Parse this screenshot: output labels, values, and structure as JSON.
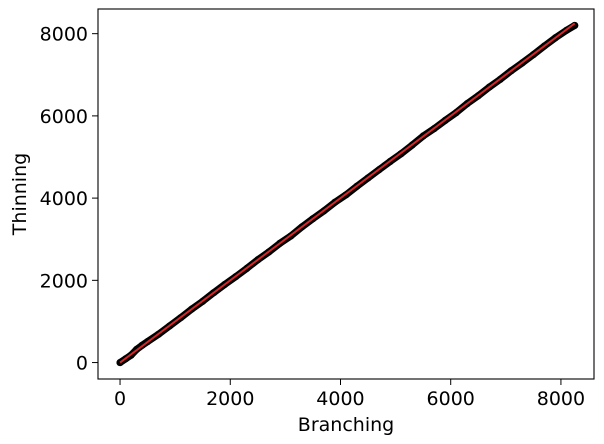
{
  "chart_data": {
    "type": "scatter",
    "title": "",
    "xlabel": "Branching",
    "ylabel": "Thinning",
    "xlim": [
      -400,
      8600
    ],
    "ylim": [
      -400,
      8600
    ],
    "x_ticks": [
      0,
      2000,
      4000,
      6000,
      8000
    ],
    "y_ticks": [
      0,
      2000,
      4000,
      6000,
      8000
    ],
    "x_tick_labels": [
      "0",
      "2000",
      "4000",
      "6000",
      "8000"
    ],
    "y_tick_labels": [
      "0",
      "2000",
      "4000",
      "6000",
      "8000"
    ],
    "grid": false,
    "legend": "none",
    "series": [
      {
        "color": "#000000",
        "marker": "circle",
        "x": [
          0,
          100,
          200,
          300,
          400,
          500,
          700,
          900,
          1100,
          1300,
          1500,
          1700,
          1900,
          2100,
          2300,
          2500,
          2700,
          2900,
          3100,
          3300,
          3500,
          3700,
          3900,
          4100,
          4300,
          4500,
          4700,
          4900,
          5100,
          5300,
          5500,
          5700,
          5900,
          6100,
          6300,
          6500,
          6700,
          6900,
          7100,
          7300,
          7500,
          7700,
          7900,
          8100,
          8250
        ],
        "y": [
          0,
          90,
          180,
          320,
          420,
          510,
          690,
          890,
          1090,
          1300,
          1490,
          1700,
          1900,
          2090,
          2290,
          2500,
          2690,
          2900,
          3080,
          3300,
          3500,
          3690,
          3900,
          4080,
          4290,
          4490,
          4690,
          4890,
          5080,
          5290,
          5510,
          5690,
          5890,
          6080,
          6300,
          6490,
          6700,
          6890,
          7100,
          7290,
          7490,
          7700,
          7900,
          8080,
          8200
        ]
      },
      {
        "color": "#d62728",
        "marker": "line",
        "x": [
          0,
          8250
        ],
        "y": [
          0,
          8250
        ]
      }
    ]
  }
}
